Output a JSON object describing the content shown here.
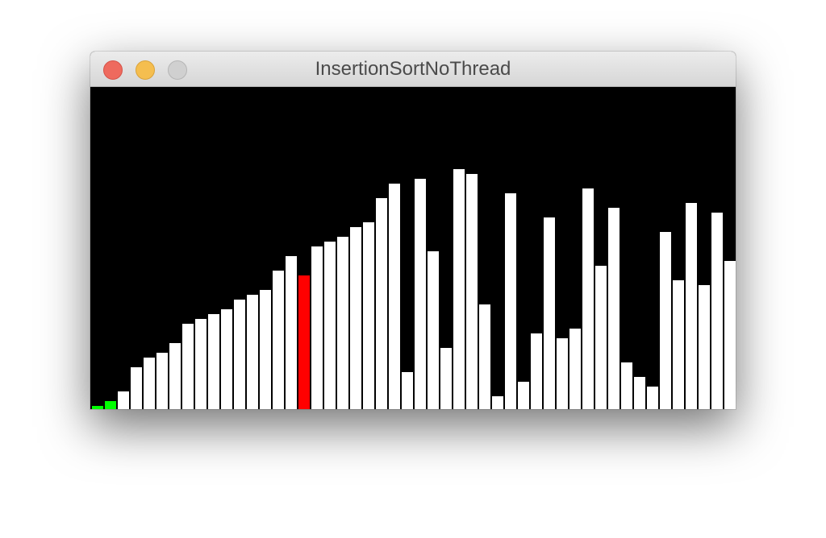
{
  "window": {
    "title": "InsertionSortNoThread",
    "buttons": [
      "close",
      "minimize",
      "zoom"
    ]
  },
  "chart_data": {
    "type": "bar",
    "bar_count": 50,
    "values": [
      4,
      10,
      22,
      52,
      64,
      70,
      82,
      106,
      112,
      118,
      124,
      136,
      142,
      148,
      172,
      190,
      166,
      202,
      208,
      214,
      226,
      232,
      262,
      280,
      46,
      286,
      196,
      76,
      298,
      292,
      130,
      16,
      268,
      34,
      94,
      238,
      88,
      100,
      274,
      178,
      250,
      58,
      40,
      28,
      220,
      160,
      256,
      154,
      244,
      184
    ],
    "max_value": 400,
    "highlight_red": [
      16
    ],
    "highlight_green": [
      0,
      1
    ],
    "colors": {
      "background": "#000000",
      "bar": "#ffffff",
      "red": "#ff0000",
      "green": "#00ff00"
    }
  }
}
